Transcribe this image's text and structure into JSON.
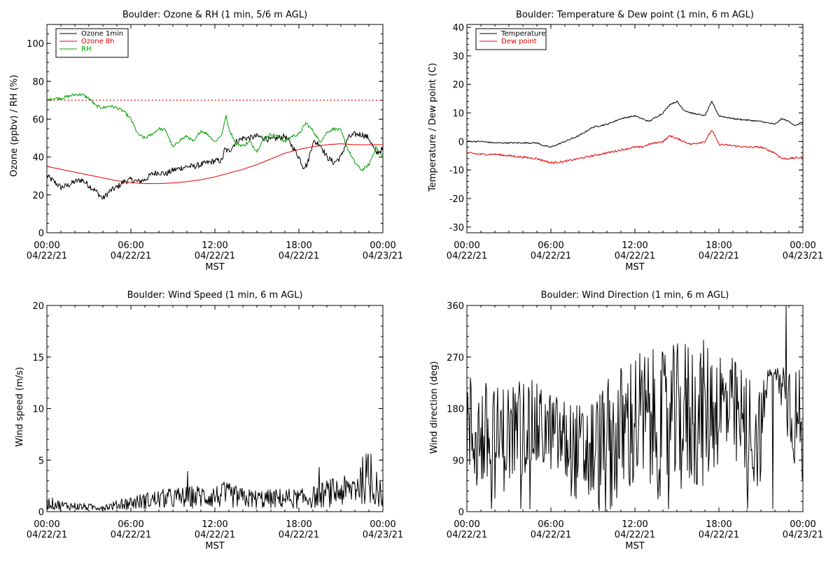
{
  "chart_data": [
    {
      "type": "line",
      "title": "Boulder: Ozone & RH (1 min, 5/6 m AGL)",
      "xlabel": "MST",
      "ylabel": "Ozone (ppbv) / RH (%)",
      "xlim": [
        0,
        24
      ],
      "ylim": [
        0,
        110
      ],
      "xticks": [
        {
          "v": 0,
          "time": "00:00",
          "date": "04/22/21"
        },
        {
          "v": 6,
          "time": "06:00",
          "date": "04/22/21"
        },
        {
          "v": 12,
          "time": "12:00",
          "date": "04/22/21"
        },
        {
          "v": 18,
          "time": "18:00",
          "date": "04/22/21"
        },
        {
          "v": 24,
          "time": "00:00",
          "date": "04/23/21"
        }
      ],
      "yticks": [
        0,
        20,
        40,
        60,
        80,
        100
      ],
      "legend": "top-left",
      "reference_line": {
        "y": 70,
        "color": "#e00000",
        "style": "dotted"
      },
      "series": [
        {
          "name": "Ozone 1min",
          "color": "#000000",
          "noise": 1.6,
          "x": [
            0,
            0.5,
            1,
            1.5,
            2,
            2.5,
            3,
            3.5,
            4,
            4.5,
            5,
            5.5,
            6,
            6.5,
            7,
            7.5,
            8,
            8.5,
            9,
            9.5,
            10,
            10.5,
            11,
            11.5,
            12,
            12.5,
            12.7,
            13,
            13.5,
            14,
            14.5,
            15,
            15.5,
            16,
            16.5,
            17,
            17.5,
            18,
            18.3,
            18.6,
            19,
            19.5,
            20,
            20.5,
            21,
            21.5,
            22,
            22.5,
            23,
            23.5,
            24
          ],
          "y": [
            30,
            27,
            24,
            25,
            27,
            28,
            25,
            22,
            18,
            22,
            24,
            27,
            28,
            27,
            28,
            31,
            32,
            31,
            33,
            34,
            35,
            35,
            36,
            37,
            38,
            38,
            44,
            43,
            48,
            50,
            50,
            51,
            50,
            49,
            50,
            51,
            46,
            40,
            35,
            36,
            48,
            47,
            40,
            37,
            40,
            50,
            52,
            52,
            50,
            42,
            44
          ]
        },
        {
          "name": "Ozone 8h",
          "color": "#e00000",
          "noise": 0,
          "x": [
            0,
            1,
            2,
            3,
            4,
            5,
            6,
            7,
            8,
            9,
            10,
            11,
            12,
            13,
            14,
            15,
            16,
            17,
            18,
            19,
            20,
            21,
            22,
            23,
            24
          ],
          "y": [
            35,
            33.5,
            32,
            30.5,
            29,
            27.5,
            26.5,
            26,
            26,
            26.3,
            27,
            28,
            29.5,
            31.5,
            33.5,
            36,
            39,
            42,
            44,
            45.5,
            46.5,
            47,
            46.5,
            46.5,
            46.5
          ]
        },
        {
          "name": "RH",
          "color": "#00a000",
          "noise": 0.8,
          "x": [
            0,
            0.5,
            1,
            1.5,
            2,
            2.5,
            3,
            3.5,
            4,
            4.5,
            5,
            5.5,
            6,
            6.5,
            7,
            7.5,
            8,
            8.5,
            9,
            9.5,
            10,
            10.5,
            11,
            11.5,
            12,
            12.5,
            12.8,
            13,
            13.5,
            14,
            14.5,
            15,
            15.5,
            16,
            16.5,
            17,
            17.5,
            18,
            18.5,
            19,
            19.5,
            20,
            20.5,
            21,
            21.5,
            22,
            22.5,
            23,
            23.5,
            24
          ],
          "y": [
            70,
            71,
            71,
            72,
            73,
            73,
            71,
            67,
            66,
            67,
            66,
            64,
            60,
            52,
            50,
            52,
            55,
            54,
            45,
            49,
            51,
            48,
            54,
            52,
            48,
            52,
            62,
            55,
            47,
            46,
            48,
            43,
            50,
            52,
            51,
            48,
            51,
            52,
            58,
            54,
            48,
            53,
            55,
            54,
            44,
            37,
            33,
            36,
            45,
            40
          ]
        }
      ]
    },
    {
      "type": "line",
      "title": "Boulder: Temperature & Dew point (1 min, 6 m AGL)",
      "xlabel": "MST",
      "ylabel": "Temperature / Dew point (C)",
      "xlim": [
        0,
        24
      ],
      "ylim": [
        -32,
        41
      ],
      "xticks": [
        {
          "v": 0,
          "time": "00:00",
          "date": "04/22/21"
        },
        {
          "v": 6,
          "time": "06:00",
          "date": "04/22/21"
        },
        {
          "v": 12,
          "time": "12:00",
          "date": "04/22/21"
        },
        {
          "v": 18,
          "time": "18:00",
          "date": "04/22/21"
        },
        {
          "v": 24,
          "time": "00:00",
          "date": "04/23/21"
        }
      ],
      "yticks": [
        -30,
        -20,
        -10,
        0,
        10,
        20,
        30,
        40
      ],
      "legend": "top-left",
      "series": [
        {
          "name": "Temperature",
          "color": "#000000",
          "noise": 0.25,
          "x": [
            0,
            1,
            2,
            3,
            4,
            5,
            5.5,
            6,
            7,
            8,
            9,
            10,
            11,
            12,
            12.5,
            13,
            14,
            14.5,
            15,
            15.5,
            16,
            17,
            17.5,
            18,
            19,
            20,
            21,
            22,
            22.5,
            23,
            23.5,
            24
          ],
          "y": [
            0,
            0,
            -0.5,
            -0.5,
            -0.5,
            -0.5,
            -1.5,
            -2,
            0,
            2,
            5,
            6,
            8,
            9,
            8,
            7,
            10,
            13,
            14,
            11,
            10,
            9,
            14,
            9,
            8,
            7.5,
            7,
            6,
            8,
            7,
            5.5,
            7
          ]
        },
        {
          "name": "Dew point",
          "color": "#e00000",
          "noise": 0.35,
          "x": [
            0,
            1,
            2,
            3,
            4,
            5,
            6,
            7,
            8,
            9,
            10,
            11,
            12,
            12.5,
            13,
            14,
            14.5,
            15,
            16,
            17,
            17.5,
            18,
            19,
            20,
            21,
            22,
            22.5,
            23,
            24
          ],
          "y": [
            -4,
            -4.5,
            -4.5,
            -5,
            -5.5,
            -6,
            -7.5,
            -7,
            -6,
            -5,
            -4,
            -3,
            -2,
            -2,
            -1,
            0,
            2,
            1,
            -1,
            0,
            4,
            -1,
            -1.5,
            -2,
            -2,
            -4,
            -6,
            -6,
            -5.5
          ]
        }
      ]
    },
    {
      "type": "line",
      "title": "Boulder: Wind Speed (1 min, 6 m AGL)",
      "xlabel": "MST",
      "ylabel": "Wind speed (m/s)",
      "xlim": [
        0,
        24
      ],
      "ylim": [
        0,
        20
      ],
      "xticks": [
        {
          "v": 0,
          "time": "00:00",
          "date": "04/22/21"
        },
        {
          "v": 6,
          "time": "06:00",
          "date": "04/22/21"
        },
        {
          "v": 12,
          "time": "12:00",
          "date": "04/22/21"
        },
        {
          "v": 18,
          "time": "18:00",
          "date": "04/22/21"
        },
        {
          "v": 24,
          "time": "00:00",
          "date": "04/23/21"
        }
      ],
      "yticks": [
        0,
        5,
        10,
        15,
        20
      ],
      "series": [
        {
          "color": "#000000",
          "noise": 0,
          "spiky": true,
          "max_value": 5.6,
          "x": [
            0,
            1,
            2,
            3,
            4,
            5,
            6,
            7,
            8,
            9,
            10,
            11,
            12,
            13,
            14,
            15,
            16,
            17,
            18,
            19,
            20,
            21,
            21.5,
            22,
            22.5,
            23,
            23.5,
            24
          ],
          "y": [
            1,
            0.7,
            0.6,
            0.5,
            0.5,
            0.7,
            1,
            1.2,
            1.4,
            1.5,
            1.6,
            1.7,
            1.7,
            1.8,
            1.5,
            1.4,
            1.4,
            1.5,
            1.4,
            1.6,
            2,
            2.3,
            2.2,
            2.8,
            3.5,
            3.3,
            2.5,
            1.7
          ]
        }
      ]
    },
    {
      "type": "line",
      "title": "Boulder: Wind Direction (1 min, 6 m AGL)",
      "xlabel": "MST",
      "ylabel": "Wind direction (deg)",
      "xlim": [
        0,
        24
      ],
      "ylim": [
        0,
        360
      ],
      "xticks": [
        {
          "v": 0,
          "time": "00:00",
          "date": "04/22/21"
        },
        {
          "v": 6,
          "time": "06:00",
          "date": "04/22/21"
        },
        {
          "v": 12,
          "time": "12:00",
          "date": "04/22/21"
        },
        {
          "v": 18,
          "time": "18:00",
          "date": "04/22/21"
        },
        {
          "v": 24,
          "time": "00:00",
          "date": "04/23/21"
        }
      ],
      "yticks": [
        0,
        90,
        180,
        270,
        360
      ],
      "series": [
        {
          "color": "#000000",
          "noise": 0,
          "scatter_dir": true,
          "x": [
            0,
            2,
            4,
            6,
            8,
            10,
            12,
            14,
            16,
            17,
            18,
            19,
            20,
            21,
            21.5,
            22,
            23,
            24
          ],
          "y": [
            140,
            120,
            150,
            140,
            100,
            110,
            160,
            150,
            170,
            170,
            190,
            170,
            140,
            130,
            240,
            240,
            200,
            130
          ],
          "amplitude": [
            110,
            100,
            90,
            70,
            90,
            120,
            130,
            130,
            140,
            130,
            110,
            100,
            110,
            90,
            10,
            10,
            90,
            110
          ]
        }
      ]
    }
  ]
}
